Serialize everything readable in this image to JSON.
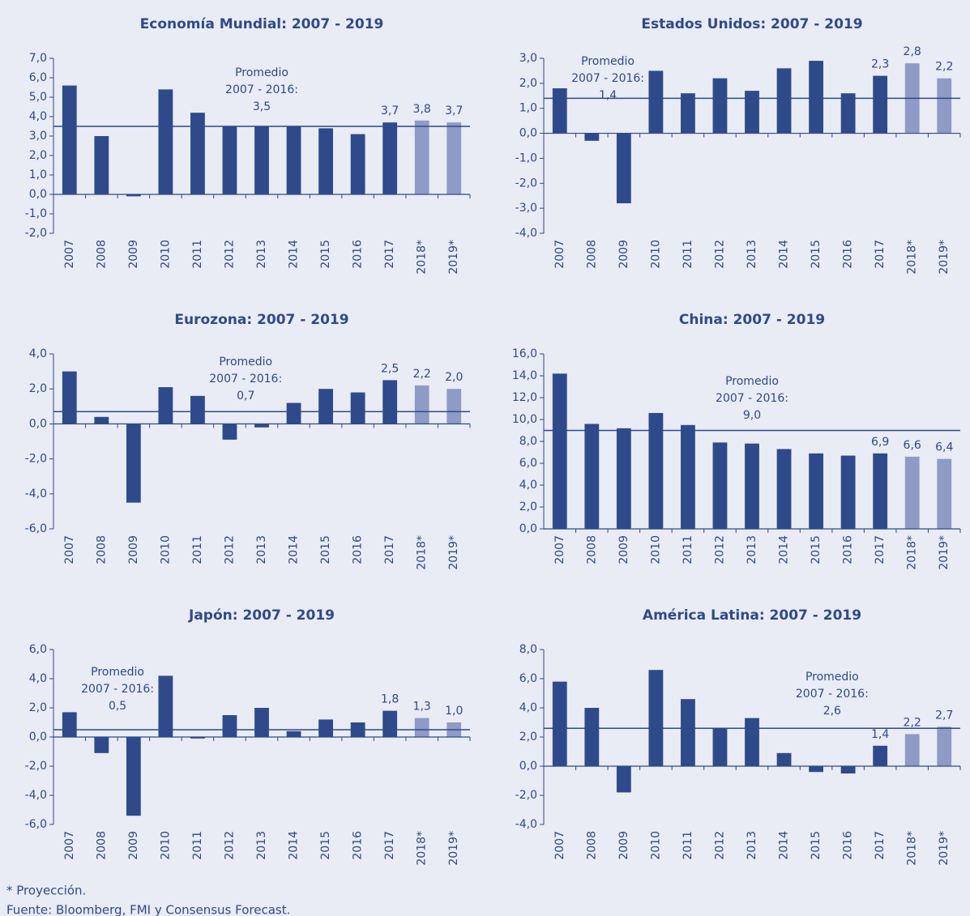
{
  "chart_data": [
    {
      "type": "bar",
      "title": "Economía Mundial: 2007 - 2019",
      "categories": [
        "2007",
        "2008",
        "2009",
        "2010",
        "2011",
        "2012",
        "2013",
        "2014",
        "2015",
        "2016",
        "2017",
        "2018*",
        "2019*"
      ],
      "values": [
        5.6,
        3.0,
        -0.1,
        5.4,
        4.2,
        3.5,
        3.5,
        3.5,
        3.4,
        3.1,
        3.7,
        3.8,
        3.7
      ],
      "value_labels": [
        null,
        null,
        null,
        null,
        null,
        null,
        null,
        null,
        null,
        null,
        "3,7",
        "3,8",
        "3,7"
      ],
      "colors": [
        "#2f4a8a",
        "#2f4a8a",
        "#2f4a8a",
        "#2f4a8a",
        "#2f4a8a",
        "#2f4a8a",
        "#2f4a8a",
        "#2f4a8a",
        "#2f4a8a",
        "#2f4a8a",
        "#2f4a8a",
        "#8e9bc6",
        "#8e9bc6"
      ],
      "ylim": [
        -2,
        7
      ],
      "yticks": [
        {
          "value": -2,
          "label": "-2,0"
        },
        {
          "value": -1,
          "label": "-1,0"
        },
        {
          "value": 0,
          "label": "0,0"
        },
        {
          "value": 1,
          "label": "1,0"
        },
        {
          "value": 2,
          "label": "2,0"
        },
        {
          "value": 3,
          "label": "3,0"
        },
        {
          "value": 4,
          "label": "4,0"
        },
        {
          "value": 5,
          "label": "5,0"
        },
        {
          "value": 6,
          "label": "6,0"
        },
        {
          "value": 7,
          "label": "7,0"
        }
      ],
      "annotation": [
        "Promedio",
        "2007 - 2016:"
      ],
      "average": {
        "value": 3.5,
        "label": "3,5"
      }
    },
    {
      "type": "bar",
      "title": "Estados Unidos: 2007 - 2019",
      "categories": [
        "2007",
        "2008",
        "2009",
        "2010",
        "2011",
        "2012",
        "2013",
        "2014",
        "2015",
        "2016",
        "2017",
        "2018*",
        "2019*"
      ],
      "values": [
        1.8,
        -0.3,
        -2.8,
        2.5,
        1.6,
        2.2,
        1.7,
        2.6,
        2.9,
        1.6,
        2.3,
        2.8,
        2.2
      ],
      "value_labels": [
        null,
        null,
        null,
        null,
        null,
        null,
        null,
        null,
        null,
        null,
        "2,3",
        "2,8",
        "2,2"
      ],
      "colors": [
        "#2f4a8a",
        "#2f4a8a",
        "#2f4a8a",
        "#2f4a8a",
        "#2f4a8a",
        "#2f4a8a",
        "#2f4a8a",
        "#2f4a8a",
        "#2f4a8a",
        "#2f4a8a",
        "#2f4a8a",
        "#8e9bc6",
        "#8e9bc6"
      ],
      "ylim": [
        -4,
        3
      ],
      "yticks": [
        {
          "value": -4,
          "label": "-4,0"
        },
        {
          "value": -3,
          "label": "-3,0"
        },
        {
          "value": -2,
          "label": "-2,0"
        },
        {
          "value": -1,
          "label": "-1,0"
        },
        {
          "value": 0,
          "label": "0,0"
        },
        {
          "value": 1,
          "label": "1,0"
        },
        {
          "value": 2,
          "label": "2,0"
        },
        {
          "value": 3,
          "label": "3,0"
        }
      ],
      "annotation": [
        "Promedio",
        "2007 - 2016:"
      ],
      "average": {
        "value": 1.4,
        "label": "1,4"
      }
    },
    {
      "type": "bar",
      "title": "Eurozona: 2007 - 2019",
      "categories": [
        "2007",
        "2008",
        "2009",
        "2010",
        "2011",
        "2012",
        "2013",
        "2014",
        "2015",
        "2016",
        "2017",
        "2018*",
        "2019*"
      ],
      "values": [
        3.0,
        0.4,
        -4.5,
        2.1,
        1.6,
        -0.9,
        -0.2,
        1.2,
        2.0,
        1.8,
        2.5,
        2.2,
        2.0
      ],
      "value_labels": [
        null,
        null,
        null,
        null,
        null,
        null,
        null,
        null,
        null,
        null,
        "2,5",
        "2,2",
        "2,0"
      ],
      "colors": [
        "#2f4a8a",
        "#2f4a8a",
        "#2f4a8a",
        "#2f4a8a",
        "#2f4a8a",
        "#2f4a8a",
        "#2f4a8a",
        "#2f4a8a",
        "#2f4a8a",
        "#2f4a8a",
        "#2f4a8a",
        "#8e9bc6",
        "#8e9bc6"
      ],
      "ylim": [
        -6,
        4
      ],
      "yticks": [
        {
          "value": -6,
          "label": "-6,0"
        },
        {
          "value": -4,
          "label": "-4,0"
        },
        {
          "value": -2,
          "label": "-2,0"
        },
        {
          "value": 0,
          "label": "0,0"
        },
        {
          "value": 2,
          "label": "2,0"
        },
        {
          "value": 4,
          "label": "4,0"
        }
      ],
      "annotation": [
        "Promedio",
        "2007 - 2016:"
      ],
      "average": {
        "value": 0.7,
        "label": "0,7"
      }
    },
    {
      "type": "bar",
      "title": "China: 2007 - 2019",
      "categories": [
        "2007",
        "2008",
        "2009",
        "2010",
        "2011",
        "2012",
        "2013",
        "2014",
        "2015",
        "2016",
        "2017",
        "2018*",
        "2019*"
      ],
      "values": [
        14.2,
        9.6,
        9.2,
        10.6,
        9.5,
        7.9,
        7.8,
        7.3,
        6.9,
        6.7,
        6.9,
        6.6,
        6.4
      ],
      "value_labels": [
        null,
        null,
        null,
        null,
        null,
        null,
        null,
        null,
        null,
        null,
        "6,9",
        "6,6",
        "6,4"
      ],
      "colors": [
        "#2f4a8a",
        "#2f4a8a",
        "#2f4a8a",
        "#2f4a8a",
        "#2f4a8a",
        "#2f4a8a",
        "#2f4a8a",
        "#2f4a8a",
        "#2f4a8a",
        "#2f4a8a",
        "#2f4a8a",
        "#8e9bc6",
        "#8e9bc6"
      ],
      "ylim": [
        0,
        16
      ],
      "yticks": [
        {
          "value": 0,
          "label": "0,0"
        },
        {
          "value": 2,
          "label": "2,0"
        },
        {
          "value": 4,
          "label": "4,0"
        },
        {
          "value": 6,
          "label": "6,0"
        },
        {
          "value": 8,
          "label": "8,0"
        },
        {
          "value": 10,
          "label": "10,0"
        },
        {
          "value": 12,
          "label": "12,0"
        },
        {
          "value": 14,
          "label": "14,0"
        },
        {
          "value": 16,
          "label": "16,0"
        }
      ],
      "annotation": [
        "Promedio",
        "2007 - 2016:"
      ],
      "average": {
        "value": 9.0,
        "label": "9,0"
      }
    },
    {
      "type": "bar",
      "title": "Japón: 2007 - 2019",
      "categories": [
        "2007",
        "2008",
        "2009",
        "2010",
        "2011",
        "2012",
        "2013",
        "2014",
        "2015",
        "2016",
        "2017",
        "2018*",
        "2019*"
      ],
      "values": [
        1.7,
        -1.1,
        -5.4,
        4.2,
        -0.1,
        1.5,
        2.0,
        0.4,
        1.2,
        1.0,
        1.8,
        1.3,
        1.0
      ],
      "value_labels": [
        null,
        null,
        null,
        null,
        null,
        null,
        null,
        null,
        null,
        null,
        "1,8",
        "1,3",
        "1,0"
      ],
      "colors": [
        "#2f4a8a",
        "#2f4a8a",
        "#2f4a8a",
        "#2f4a8a",
        "#2f4a8a",
        "#2f4a8a",
        "#2f4a8a",
        "#2f4a8a",
        "#2f4a8a",
        "#2f4a8a",
        "#2f4a8a",
        "#8e9bc6",
        "#8e9bc6"
      ],
      "ylim": [
        -6,
        6
      ],
      "yticks": [
        {
          "value": -6,
          "label": "-6,0"
        },
        {
          "value": -4,
          "label": "-4,0"
        },
        {
          "value": -2,
          "label": "-2,0"
        },
        {
          "value": 0,
          "label": "0,0"
        },
        {
          "value": 2,
          "label": "2,0"
        },
        {
          "value": 4,
          "label": "4,0"
        },
        {
          "value": 6,
          "label": "6,0"
        }
      ],
      "annotation": [
        "Promedio",
        "2007 - 2016:"
      ],
      "average": {
        "value": 0.5,
        "label": "0,5"
      }
    },
    {
      "type": "bar",
      "title": "América Latina: 2007 - 2019",
      "categories": [
        "2007",
        "2008",
        "2009",
        "2010",
        "2011",
        "2012",
        "2013",
        "2014",
        "2015",
        "2016",
        "2017",
        "2018*",
        "2019*"
      ],
      "values": [
        5.8,
        4.0,
        -1.8,
        6.6,
        4.6,
        2.6,
        3.3,
        0.9,
        -0.4,
        -0.5,
        1.4,
        2.2,
        2.7
      ],
      "value_labels": [
        null,
        null,
        null,
        null,
        null,
        null,
        null,
        null,
        null,
        null,
        "1,4",
        "2,2",
        "2,7"
      ],
      "colors": [
        "#2f4a8a",
        "#2f4a8a",
        "#2f4a8a",
        "#2f4a8a",
        "#2f4a8a",
        "#2f4a8a",
        "#2f4a8a",
        "#2f4a8a",
        "#2f4a8a",
        "#2f4a8a",
        "#2f4a8a",
        "#8e9bc6",
        "#8e9bc6"
      ],
      "ylim": [
        -4,
        8
      ],
      "yticks": [
        {
          "value": -4,
          "label": "-4,0"
        },
        {
          "value": -2,
          "label": "-2,0"
        },
        {
          "value": 0,
          "label": "0,0"
        },
        {
          "value": 2,
          "label": "2,0"
        },
        {
          "value": 4,
          "label": "4,0"
        },
        {
          "value": 6,
          "label": "6,0"
        },
        {
          "value": 8,
          "label": "8,0"
        }
      ],
      "annotation": [
        "Promedio",
        "2007 - 2016:"
      ],
      "average": {
        "value": 2.6,
        "label": "2,6"
      }
    }
  ],
  "footnote": "* Proyección.",
  "source": "Fuente: Bloomberg, FMI y Consensus Forecast."
}
